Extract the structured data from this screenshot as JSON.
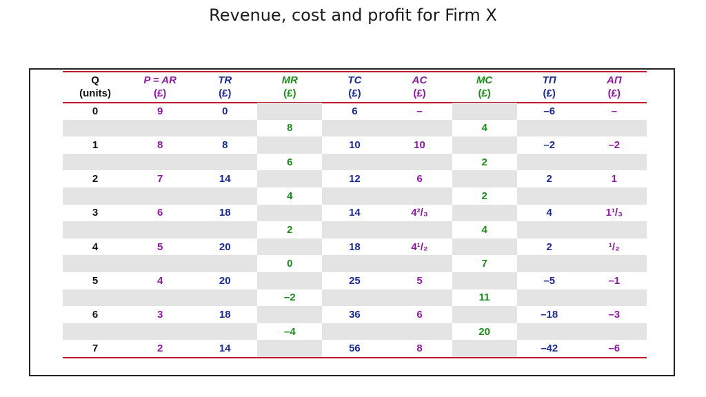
{
  "title": "Revenue, cost and profit for Firm X",
  "headers": [
    {
      "top": "Q",
      "bottom": "(units)"
    },
    {
      "top": "P = AR",
      "bottom": "(£)"
    },
    {
      "top": "TR",
      "bottom": "(£)"
    },
    {
      "top": "MR",
      "bottom": "(£)"
    },
    {
      "top": "TC",
      "bottom": "(£)"
    },
    {
      "top": "AC",
      "bottom": "(£)"
    },
    {
      "top": "MC",
      "bottom": "(£)"
    },
    {
      "top": "TΠ",
      "bottom": "(£)"
    },
    {
      "top": "AΠ",
      "bottom": "(£)"
    }
  ],
  "rows": [
    {
      "q": "0",
      "p": "9",
      "tr": "0",
      "tc": "6",
      "ac": "–",
      "tp": "–6",
      "ap": "–"
    },
    {
      "mr": "8",
      "mc": "4"
    },
    {
      "q": "1",
      "p": "8",
      "tr": "8",
      "tc": "10",
      "ac": "10",
      "tp": "–2",
      "ap": "–2"
    },
    {
      "mr": "6",
      "mc": "2"
    },
    {
      "q": "2",
      "p": "7",
      "tr": "14",
      "tc": "12",
      "ac": "6",
      "tp": "2",
      "ap": "1"
    },
    {
      "mr": "4",
      "mc": "2"
    },
    {
      "q": "3",
      "p": "6",
      "tr": "18",
      "tc": "14",
      "ac": "4²/₃",
      "tp": "4",
      "ap": "1¹/₃"
    },
    {
      "mr": "2",
      "mc": "4"
    },
    {
      "q": "4",
      "p": "5",
      "tr": "20",
      "tc": "18",
      "ac": "4¹/₂",
      "tp": "2",
      "ap": "¹/₂"
    },
    {
      "mr": "0",
      "mc": "7"
    },
    {
      "q": "5",
      "p": "4",
      "tr": "20",
      "tc": "25",
      "ac": "5",
      "tp": "–5",
      "ap": "–1"
    },
    {
      "mr": "–2",
      "mc": "11"
    },
    {
      "q": "6",
      "p": "3",
      "tr": "18",
      "tc": "36",
      "ac": "6",
      "tp": "–18",
      "ap": "–3"
    },
    {
      "mr": "–4",
      "mc": "20"
    },
    {
      "q": "7",
      "p": "2",
      "tr": "14",
      "tc": "56",
      "ac": "8",
      "tp": "–42",
      "ap": "–6"
    }
  ]
}
